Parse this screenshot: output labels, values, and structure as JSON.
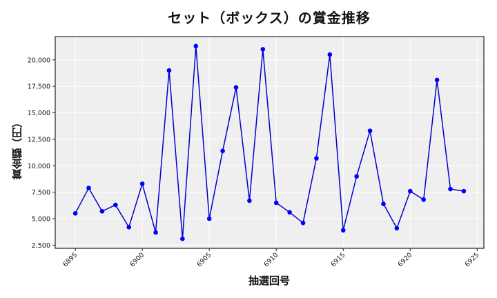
{
  "chart_data": {
    "type": "line",
    "title": "セット（ボックス）の賞金推移",
    "xlabel": "抽選回号",
    "ylabel": "賞金額（円）",
    "x": [
      6895,
      6896,
      6897,
      6898,
      6899,
      6900,
      6901,
      6902,
      6903,
      6904,
      6905,
      6906,
      6907,
      6908,
      6909,
      6910,
      6911,
      6912,
      6913,
      6914,
      6915,
      6916,
      6917,
      6918,
      6919,
      6920,
      6921,
      6922,
      6923,
      6924
    ],
    "series": [
      {
        "name": "賞金額",
        "color": "#0000cc",
        "marker_color": "#0000ff",
        "values": [
          5500,
          7900,
          5700,
          6300,
          4200,
          8300,
          3700,
          19000,
          3100,
          21300,
          5000,
          11400,
          17400,
          6700,
          21000,
          6500,
          5600,
          4600,
          10700,
          20500,
          3900,
          9000,
          13300,
          6400,
          4100,
          7600,
          6800,
          18100,
          7800,
          7600
        ]
      }
    ],
    "xticks": [
      6895,
      6900,
      6905,
      6910,
      6915,
      6920,
      6925
    ],
    "xtick_labels": [
      "6895",
      "6900",
      "6905",
      "6910",
      "6915",
      "6920",
      "6925"
    ],
    "yticks": [
      2500,
      5000,
      7500,
      10000,
      12500,
      15000,
      17500,
      20000
    ],
    "ytick_labels": [
      "2,500",
      "5,000",
      "7,500",
      "10,000",
      "12,500",
      "15,000",
      "17,500",
      "20,000"
    ],
    "xlim": [
      6893.5,
      6925.5
    ],
    "ylim": [
      2200,
      22200
    ],
    "grid": true,
    "background": "#efefef",
    "legend": null
  }
}
